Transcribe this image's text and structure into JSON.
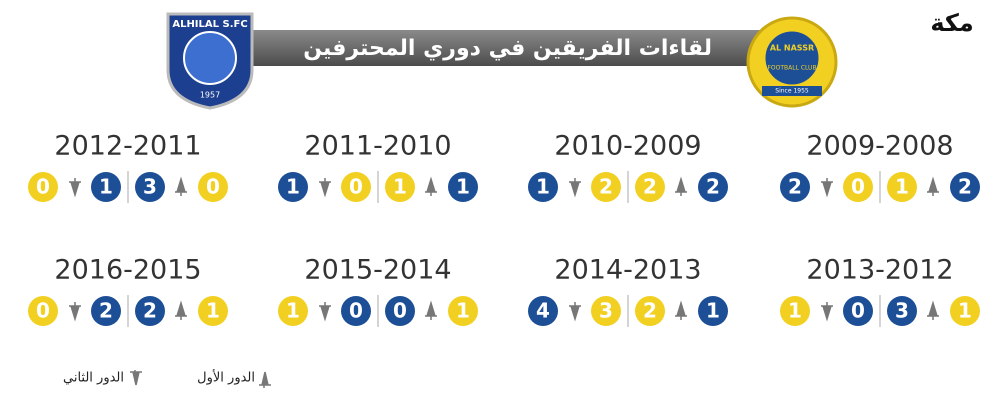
{
  "header": {
    "title": "لقاءات الفريقين في دوري المحترفين",
    "brand": "مكة",
    "hilal_logo": "ALHILAL S.FC",
    "hilal_year": "1957",
    "nassr_logo": "AL NASSR",
    "nassr_sub": "FOOTBALL CLUB",
    "nassr_since": "Since 1955"
  },
  "seasons": [
    {
      "season": "2012-2011",
      "second_round": [
        {
          "score": 0,
          "color": "#f2d022"
        },
        {
          "score": 1,
          "color": "#1d4f97"
        }
      ],
      "first_round": [
        {
          "score": 3,
          "color": "#1d4f97"
        },
        {
          "score": 0,
          "color": "#f2d022"
        }
      ]
    },
    {
      "season": "2011-2010",
      "second_round": [
        {
          "score": 1,
          "color": "#1d4f97"
        },
        {
          "score": 0,
          "color": "#f2d022"
        }
      ],
      "first_round": [
        {
          "score": 1,
          "color": "#f2d022"
        },
        {
          "score": 1,
          "color": "#1d4f97"
        }
      ]
    },
    {
      "season": "2010-2009",
      "second_round": [
        {
          "score": 1,
          "color": "#1d4f97"
        },
        {
          "score": 2,
          "color": "#f2d022"
        }
      ],
      "first_round": [
        {
          "score": 2,
          "color": "#f2d022"
        },
        {
          "score": 2,
          "color": "#1d4f97"
        }
      ]
    },
    {
      "season": "2009-2008",
      "second_round": [
        {
          "score": 2,
          "color": "#1d4f97"
        },
        {
          "score": 0,
          "color": "#f2d022"
        }
      ],
      "first_round": [
        {
          "score": 1,
          "color": "#f2d022"
        },
        {
          "score": 2,
          "color": "#1d4f97"
        }
      ]
    },
    {
      "season": "2016-2015",
      "second_round": [
        {
          "score": 0,
          "color": "#f2d022"
        },
        {
          "score": 2,
          "color": "#1d4f97"
        }
      ],
      "first_round": [
        {
          "score": 2,
          "color": "#1d4f97"
        },
        {
          "score": 1,
          "color": "#f2d022"
        }
      ]
    },
    {
      "season": "2015-2014",
      "second_round": [
        {
          "score": 1,
          "color": "#f2d022"
        },
        {
          "score": 0,
          "color": "#1d4f97"
        }
      ],
      "first_round": [
        {
          "score": 0,
          "color": "#1d4f97"
        },
        {
          "score": 1,
          "color": "#f2d022"
        }
      ]
    },
    {
      "season": "2014-2013",
      "second_round": [
        {
          "score": 4,
          "color": "#1d4f97"
        },
        {
          "score": 3,
          "color": "#f2d022"
        }
      ],
      "first_round": [
        {
          "score": 2,
          "color": "#f2d022"
        },
        {
          "score": 1,
          "color": "#1d4f97"
        }
      ]
    },
    {
      "season": "2013-2012",
      "second_round": [
        {
          "score": 1,
          "color": "#f2d022"
        },
        {
          "score": 0,
          "color": "#1d4f97"
        }
      ],
      "first_round": [
        {
          "score": 3,
          "color": "#1d4f97"
        },
        {
          "score": 1,
          "color": "#f2d022"
        }
      ]
    }
  ],
  "legend": {
    "first_round": "الدور الأول",
    "second_round": "الدور الثاني"
  }
}
